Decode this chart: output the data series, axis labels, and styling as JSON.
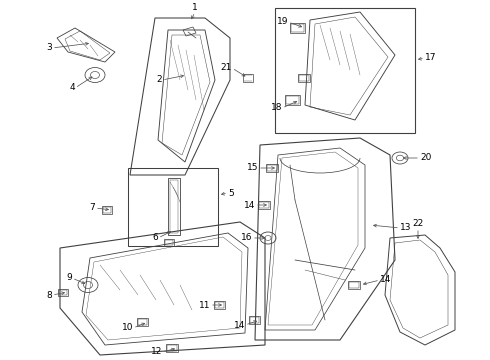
{
  "bg_color": "#ffffff",
  "lc": "#404040",
  "lw": 0.7,
  "fig_w": 4.9,
  "fig_h": 3.6,
  "dpi": 100
}
